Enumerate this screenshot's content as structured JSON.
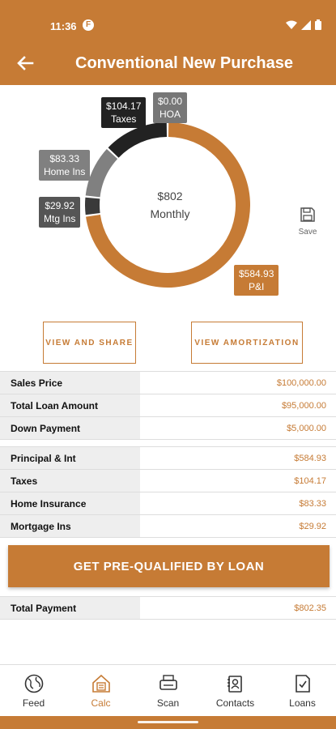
{
  "status_bar": {
    "time": "11:36",
    "app_icon_letter": "F"
  },
  "app_bar": {
    "title": "Conventional New Purchase"
  },
  "chart_data": {
    "type": "pie",
    "donut": true,
    "center_value": "$802",
    "center_label": "Monthly",
    "slices": [
      {
        "name": "P&I",
        "value": 584.93,
        "label": "$584.93",
        "color": "#c67b35"
      },
      {
        "name": "Mtg Ins",
        "value": 29.92,
        "label": "$29.92",
        "color": "#3a3a3a"
      },
      {
        "name": "Home Ins",
        "value": 83.33,
        "label": "$83.33",
        "color": "#808080"
      },
      {
        "name": "Taxes",
        "value": 104.17,
        "label": "$104.17",
        "color": "#222222"
      },
      {
        "name": "HOA",
        "value": 0.0,
        "label": "$0.00",
        "color": "#777777"
      }
    ]
  },
  "save": {
    "label": "Save"
  },
  "buttons": {
    "view_share": "VIEW AND SHARE",
    "view_amort": "VIEW AMORTIZATION",
    "prequal": "GET PRE-QUALIFIED BY LOAN"
  },
  "loan_table": [
    {
      "label": "Sales Price",
      "value": "$100,000.00"
    },
    {
      "label": "Total Loan Amount",
      "value": "$95,000.00"
    },
    {
      "label": "Down Payment",
      "value": "$5,000.00"
    }
  ],
  "payment_table": [
    {
      "label": "Principal & Int",
      "value": "$584.93"
    },
    {
      "label": "Taxes",
      "value": "$104.17"
    },
    {
      "label": "Home Insurance",
      "value": "$83.33"
    },
    {
      "label": "Mortgage Ins",
      "value": "$29.92"
    }
  ],
  "total": {
    "label": "Total Payment",
    "value": "$802.35"
  },
  "tabs": [
    {
      "label": "Feed",
      "icon": "globe-icon",
      "active": false
    },
    {
      "label": "Calc",
      "icon": "calculator-house-icon",
      "active": true
    },
    {
      "label": "Scan",
      "icon": "scanner-icon",
      "active": false
    },
    {
      "label": "Contacts",
      "icon": "contacts-icon",
      "active": false
    },
    {
      "label": "Loans",
      "icon": "document-check-icon",
      "active": false
    }
  ],
  "colors": {
    "brand": "#c67b35"
  }
}
